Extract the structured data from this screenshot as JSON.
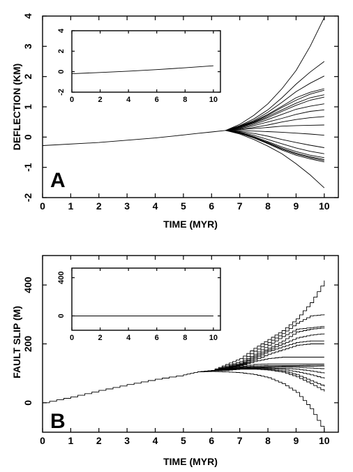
{
  "chart_data": [
    {
      "type": "line",
      "panel_label": "A",
      "xlabel": "TIME (MYR)",
      "ylabel": "DEFLECTION (KM)",
      "xlim": [
        0,
        10.5
      ],
      "ylim": [
        -2,
        4
      ],
      "xticks": [
        0,
        1,
        2,
        3,
        4,
        5,
        6,
        7,
        8,
        9,
        10
      ],
      "yticks": [
        -2,
        -1,
        0,
        1,
        2,
        3,
        4
      ],
      "grid": false,
      "legend": "none",
      "common_path": {
        "x": [
          0,
          2,
          4,
          5,
          5.5,
          6,
          6.5
        ],
        "y": [
          -0.28,
          -0.18,
          -0.03,
          0.07,
          0.12,
          0.17,
          0.22
        ]
      },
      "branch_x": [
        6.5,
        7,
        7.5,
        8,
        8.5,
        9,
        9.5,
        10
      ],
      "series": [
        {
          "values": [
            0.22,
            0.42,
            0.72,
            1.1,
            1.6,
            2.2,
            3.0,
            3.95
          ]
        },
        {
          "values": [
            0.22,
            0.38,
            0.6,
            0.9,
            1.3,
            1.75,
            2.15,
            2.5
          ]
        },
        {
          "values": [
            0.22,
            0.36,
            0.55,
            0.82,
            1.15,
            1.5,
            1.78,
            2.02
          ]
        },
        {
          "values": [
            0.22,
            0.35,
            0.52,
            0.75,
            1.02,
            1.3,
            1.48,
            1.6
          ]
        },
        {
          "values": [
            0.22,
            0.34,
            0.5,
            0.72,
            0.98,
            1.22,
            1.42,
            1.55
          ]
        },
        {
          "values": [
            0.22,
            0.33,
            0.48,
            0.68,
            0.9,
            1.12,
            1.3,
            1.4
          ]
        },
        {
          "values": [
            0.22,
            0.32,
            0.46,
            0.64,
            0.85,
            1.05,
            1.22,
            1.32
          ]
        },
        {
          "values": [
            0.22,
            0.3,
            0.42,
            0.58,
            0.75,
            0.92,
            1.02,
            1.1
          ]
        },
        {
          "values": [
            0.22,
            0.28,
            0.38,
            0.5,
            0.62,
            0.75,
            0.85,
            0.9
          ]
        },
        {
          "values": [
            0.22,
            0.26,
            0.32,
            0.4,
            0.5,
            0.58,
            0.64,
            0.68
          ]
        },
        {
          "values": [
            0.22,
            0.24,
            0.28,
            0.32,
            0.36,
            0.38,
            0.39,
            0.4
          ]
        },
        {
          "values": [
            0.22,
            0.21,
            0.2,
            0.18,
            0.16,
            0.13,
            0.1,
            0.06
          ]
        },
        {
          "values": [
            0.22,
            0.18,
            0.12,
            0.03,
            -0.08,
            -0.18,
            -0.27,
            -0.35
          ]
        },
        {
          "values": [
            0.22,
            0.16,
            0.06,
            -0.08,
            -0.22,
            -0.36,
            -0.47,
            -0.55
          ]
        },
        {
          "values": [
            0.22,
            0.15,
            0.02,
            -0.15,
            -0.33,
            -0.48,
            -0.6,
            -0.68
          ]
        },
        {
          "values": [
            0.22,
            0.14,
            0.0,
            -0.18,
            -0.37,
            -0.53,
            -0.65,
            -0.74
          ]
        },
        {
          "values": [
            0.22,
            0.13,
            -0.02,
            -0.2,
            -0.4,
            -0.56,
            -0.68,
            -0.78
          ]
        },
        {
          "values": [
            0.22,
            0.12,
            -0.03,
            -0.22,
            -0.43,
            -0.6,
            -0.72,
            -0.82
          ]
        },
        {
          "values": [
            0.22,
            0.1,
            -0.08,
            -0.3,
            -0.55,
            -0.88,
            -1.25,
            -1.68
          ]
        }
      ],
      "inset": {
        "xlim": [
          0,
          10.5
        ],
        "ylim": [
          -2,
          4
        ],
        "xticks": [
          0,
          2,
          4,
          6,
          8,
          10
        ],
        "yticks": [
          -2,
          0,
          2,
          4
        ],
        "x": [
          0,
          2,
          4,
          6,
          8,
          10
        ],
        "y": [
          -0.2,
          -0.08,
          0.05,
          0.2,
          0.38,
          0.58
        ]
      }
    },
    {
      "type": "line",
      "panel_label": "B",
      "xlabel": "TIME (MYR)",
      "ylabel": "FAULT SLIP (M)",
      "xlim": [
        0,
        10.5
      ],
      "ylim": [
        -100,
        500
      ],
      "xticks": [
        0,
        1,
        2,
        3,
        4,
        5,
        6,
        7,
        8,
        9,
        10
      ],
      "yticks": [
        0,
        200,
        400
      ],
      "grid": false,
      "legend": "none",
      "common_path": {
        "x": [
          0,
          1,
          2,
          3,
          4,
          5,
          5.5
        ],
        "y": [
          0,
          20,
          42,
          62,
          80,
          95,
          105
        ]
      },
      "branch_x": [
        5.5,
        6,
        6.5,
        7,
        7.5,
        8,
        8.5,
        9,
        9.5,
        10
      ],
      "series": [
        {
          "values": [
            105,
            110,
            130,
            150,
            185,
            215,
            245,
            285,
            340,
            415
          ]
        },
        {
          "values": [
            105,
            110,
            125,
            140,
            175,
            205,
            235,
            270,
            295,
            300
          ]
        },
        {
          "values": [
            105,
            110,
            122,
            135,
            165,
            195,
            225,
            250,
            255,
            260
          ]
        },
        {
          "values": [
            105,
            110,
            120,
            132,
            160,
            185,
            210,
            240,
            250,
            255
          ]
        },
        {
          "values": [
            105,
            110,
            118,
            130,
            155,
            180,
            200,
            220,
            230,
            235
          ]
        },
        {
          "values": [
            105,
            110,
            117,
            128,
            150,
            175,
            190,
            205,
            210,
            210
          ]
        },
        {
          "values": [
            105,
            110,
            116,
            126,
            145,
            165,
            180,
            195,
            200,
            200
          ]
        },
        {
          "values": [
            105,
            110,
            115,
            125,
            140,
            150,
            155,
            155,
            155,
            155
          ]
        },
        {
          "values": [
            105,
            110,
            114,
            122,
            130,
            132,
            132,
            132,
            132,
            132
          ]
        },
        {
          "values": [
            105,
            110,
            113,
            120,
            125,
            127,
            127,
            127,
            128,
            128
          ]
        },
        {
          "values": [
            105,
            110,
            113,
            119,
            122,
            123,
            124,
            124,
            124,
            125
          ]
        },
        {
          "values": [
            105,
            110,
            112,
            118,
            120,
            121,
            121,
            120,
            118,
            115
          ]
        },
        {
          "values": [
            105,
            110,
            112,
            117,
            118,
            118,
            117,
            114,
            108,
            100
          ]
        },
        {
          "values": [
            105,
            110,
            111,
            116,
            117,
            116,
            113,
            105,
            95,
            82
          ]
        },
        {
          "values": [
            105,
            110,
            111,
            115,
            115,
            113,
            108,
            95,
            75,
            55
          ]
        },
        {
          "values": [
            105,
            108,
            110,
            114,
            114,
            111,
            104,
            88,
            65,
            38
          ]
        },
        {
          "values": [
            105,
            106,
            105,
            102,
            96,
            85,
            65,
            35,
            -20,
            -100
          ]
        }
      ],
      "inset": {
        "xlim": [
          0,
          10.5
        ],
        "ylim": [
          -150,
          500
        ],
        "xticks": [
          0,
          2,
          4,
          6,
          8,
          10
        ],
        "yticks": [
          0,
          400
        ],
        "x": [
          0,
          2,
          4,
          6,
          8,
          10
        ],
        "y": [
          0,
          0,
          0,
          0,
          0,
          0
        ]
      }
    }
  ]
}
